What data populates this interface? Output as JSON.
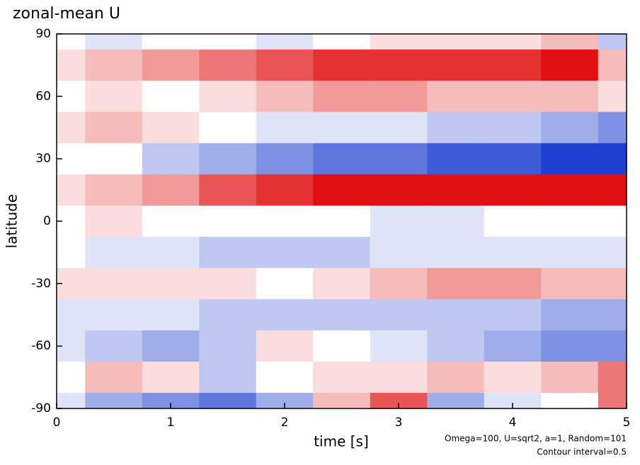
{
  "chart_data": {
    "type": "heatmap",
    "title": "zonal-mean U",
    "x_label": "time [s]",
    "y_label": "latitude",
    "annotations": [
      "Omega=100, U=sqrt2, a=1, Random=101",
      "Contour interval=0.5"
    ],
    "x": [
      0,
      0.5,
      1,
      1.5,
      2,
      2.5,
      3,
      3.5,
      4,
      4.5,
      5
    ],
    "y": [
      90,
      75,
      60,
      45,
      30,
      15,
      0,
      -15,
      -30,
      -45,
      -60,
      -75,
      -90
    ],
    "z": [
      [
        0,
        -1,
        0,
        0,
        -1,
        0,
        1,
        1,
        1,
        2,
        -2
      ],
      [
        1,
        2,
        3,
        4,
        5,
        6,
        6,
        6,
        6,
        7,
        2
      ],
      [
        0,
        1,
        0,
        1,
        2,
        3,
        3,
        2,
        2,
        2,
        1
      ],
      [
        1,
        2,
        1,
        0,
        -1,
        -1,
        -1,
        -2,
        -2,
        -3,
        -4
      ],
      [
        0,
        0,
        -2,
        -3,
        -4,
        -5,
        -5,
        -6,
        -6,
        -7,
        -7
      ],
      [
        1,
        2,
        3,
        5,
        6,
        7,
        7,
        7,
        7,
        7,
        7
      ],
      [
        0,
        1,
        0,
        0,
        0,
        0,
        -1,
        -1,
        0,
        0,
        0
      ],
      [
        0,
        -1,
        -1,
        -2,
        -2,
        -2,
        -1,
        -1,
        -1,
        -1,
        -1
      ],
      [
        1,
        1,
        1,
        1,
        0,
        1,
        2,
        3,
        3,
        2,
        2
      ],
      [
        -1,
        -1,
        -1,
        -2,
        -2,
        -2,
        -2,
        -2,
        -2,
        -3,
        -3
      ],
      [
        -1,
        -2,
        -3,
        -2,
        1,
        0,
        -1,
        -2,
        -3,
        -4,
        -4
      ],
      [
        0,
        2,
        1,
        -2,
        0,
        1,
        1,
        2,
        1,
        2,
        4
      ],
      [
        -1,
        -3,
        -4,
        -5,
        -3,
        2,
        5,
        -3,
        -1,
        0,
        4
      ]
    ],
    "zlim": [
      -7,
      7
    ],
    "colors": {
      "negative": "#1f3fd0",
      "zero": "#ffffff",
      "positive": "#e01010"
    },
    "xlim": [
      0,
      5
    ],
    "ylim": [
      -90,
      90
    ],
    "xticks": [
      0,
      1,
      2,
      3,
      4,
      5
    ],
    "yticks": [
      -90,
      -60,
      -30,
      0,
      30,
      60,
      90
    ]
  }
}
